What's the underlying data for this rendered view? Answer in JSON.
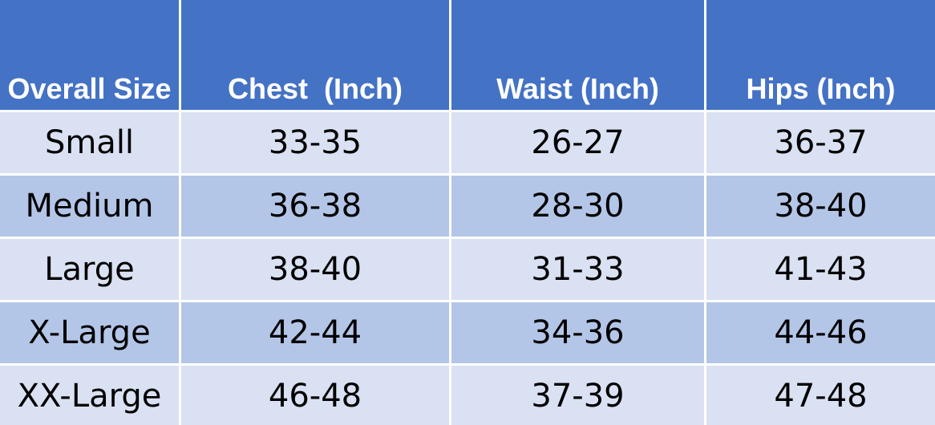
{
  "table": {
    "header": [
      "Overall Size",
      "Chest  (Inch)",
      "Waist (Inch)",
      "Hips (Inch)"
    ],
    "rows": [
      [
        "Small",
        "33-35",
        "26-27",
        "36-37"
      ],
      [
        "Medium",
        "36-38",
        "28-30",
        "38-40"
      ],
      [
        "Large",
        "38-40",
        "31-33",
        "41-43"
      ],
      [
        "X-Large",
        "42-44",
        "34-36",
        "44-46"
      ],
      [
        "XX-Large",
        "46-48",
        "37-39",
        "47-48"
      ]
    ]
  }
}
